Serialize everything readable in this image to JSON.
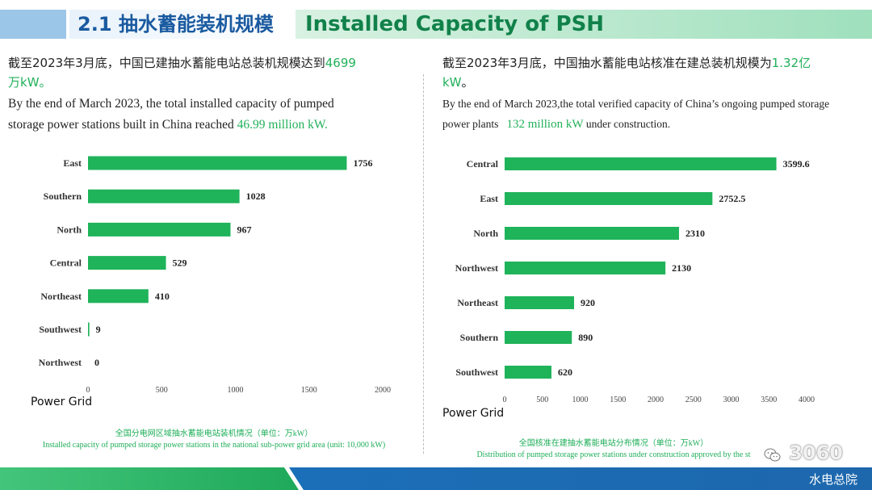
{
  "header": {
    "title_zh": "2.1 抽水蓄能装机规模",
    "title_en": "Installed Capacity of PSH"
  },
  "left": {
    "zh_prefix": "截至2023年3月底，中国已建抽水蓄能电站总装机规模达到",
    "zh_highlight": "4699",
    "zh_line2_highlight": "万",
    "zh_line2_rest": "kW。",
    "en_line1": "By the end of March 2023, the total installed capacity of pumped",
    "en_line2_prefix": "storage power stations built in China reached ",
    "en_highlight": "46.99 million kW."
  },
  "right": {
    "zh_prefix": "截至2023年3月底，中国抽水蓄能电站核准在建总装机规模为",
    "zh_highlight": "1.32亿",
    "zh_line2_highlight": "kW",
    "zh_line2_rest": "。",
    "en_line1": "By the end of March 2023,the total verified capacity of China’s ongoing pumped storage",
    "en_line2_prefix": "power plants   ",
    "en_highlight": "132 million kW",
    "en_line2_suffix": " under construction."
  },
  "chart_data": [
    {
      "type": "bar",
      "orientation": "horizontal",
      "categories": [
        "East",
        "Southern",
        "North",
        "Central",
        "Northeast",
        "Southwest",
        "Northwest"
      ],
      "values": [
        1756,
        1028,
        967,
        529,
        410,
        9,
        0
      ],
      "xlim": [
        0,
        2000
      ],
      "xticks": [
        0,
        500,
        1000,
        1500,
        2000
      ],
      "ylabel": "Power Grid",
      "bar_color": "#1fb35a",
      "caption_zh": "全国分电网区域抽水蓄能电站装机情况（单位：万kW）",
      "caption_en": "Installed capacity of pumped storage power stations in the national sub-power grid area (unit: 10,000 kW)"
    },
    {
      "type": "bar",
      "orientation": "horizontal",
      "categories": [
        "Central",
        "East",
        "North",
        "Northwest",
        "Northeast",
        "Southern",
        "Southwest"
      ],
      "values": [
        3599.6,
        2752.5,
        2310,
        2130,
        920,
        890,
        620
      ],
      "xlim": [
        0,
        4000
      ],
      "xticks": [
        0,
        500,
        1000,
        1500,
        2000,
        2500,
        3000,
        3500,
        4000
      ],
      "ylabel": "Power Grid",
      "bar_color": "#1fb35a",
      "caption_zh": "全国核准在建抽水蓄能电站分布情况（单位：万kW）",
      "caption_en": "Distribution of pumped storage power stations under construction approved by the st"
    }
  ],
  "footer": {
    "watermark": "3060",
    "org": "水电总院"
  },
  "colors": {
    "accent_green": "#22b15b",
    "title_blue": "#1a5aa0"
  }
}
